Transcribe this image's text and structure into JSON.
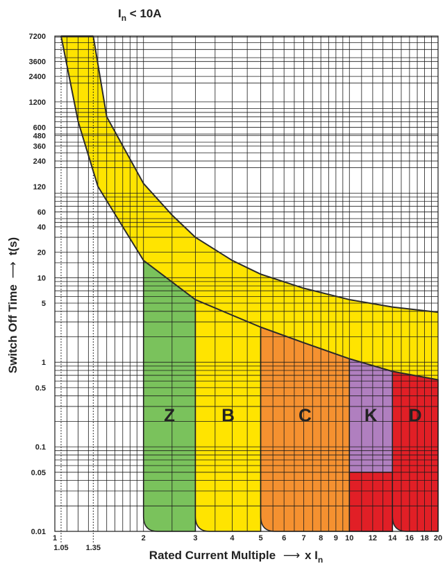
{
  "chart_data": {
    "type": "area",
    "title_main": "I",
    "title_sub": "n",
    "title_rest": " < 10A",
    "xlabel_main": "Rated Current Multiple",
    "xlabel_unit_main": "x I",
    "xlabel_unit_sub": "n",
    "ylabel_main": "Switch Off Time",
    "ylabel_unit": "t(s)",
    "x_scale": "log",
    "y_scale": "log",
    "xlim": [
      1,
      20
    ],
    "ylim": [
      0.01,
      7200
    ],
    "x_ticks": [
      {
        "value": 1,
        "label": "1"
      },
      {
        "value": 2,
        "label": "2"
      },
      {
        "value": 3,
        "label": "3"
      },
      {
        "value": 4,
        "label": "4"
      },
      {
        "value": 5,
        "label": "5"
      },
      {
        "value": 6,
        "label": "6"
      },
      {
        "value": 7,
        "label": "7"
      },
      {
        "value": 8,
        "label": "8"
      },
      {
        "value": 9,
        "label": "9"
      },
      {
        "value": 10,
        "label": "10"
      },
      {
        "value": 12,
        "label": "12"
      },
      {
        "value": 14,
        "label": "14"
      },
      {
        "value": 16,
        "label": "16"
      },
      {
        "value": 18,
        "label": "18"
      },
      {
        "value": 20,
        "label": "20"
      }
    ],
    "x_ticks_dotted": [
      {
        "value": 1.05,
        "label": "1.05"
      },
      {
        "value": 1.35,
        "label": "1.35"
      }
    ],
    "y_ticks": [
      {
        "value": 7200,
        "label": "7200"
      },
      {
        "value": 3600,
        "label": "3600"
      },
      {
        "value": 2400,
        "label": "2400"
      },
      {
        "value": 1200,
        "label": "1200"
      },
      {
        "value": 600,
        "label": "600"
      },
      {
        "value": 480,
        "label": "480"
      },
      {
        "value": 360,
        "label": "360"
      },
      {
        "value": 240,
        "label": "240"
      },
      {
        "value": 120,
        "label": "120"
      },
      {
        "value": 60,
        "label": "60"
      },
      {
        "value": 40,
        "label": "40"
      },
      {
        "value": 20,
        "label": "20"
      },
      {
        "value": 10,
        "label": "10"
      },
      {
        "value": 5,
        "label": "5"
      },
      {
        "value": 1,
        "label": "1"
      },
      {
        "value": 0.5,
        "label": "0.5"
      },
      {
        "value": 0.1,
        "label": "0.1"
      },
      {
        "value": 0.05,
        "label": "0.05"
      },
      {
        "value": 0.01,
        "label": "0.01"
      }
    ],
    "thermal_band": {
      "color": "#ffe400",
      "upper_curve": [
        [
          1.35,
          7200
        ],
        [
          1.5,
          800
        ],
        [
          2,
          130
        ],
        [
          2.5,
          55
        ],
        [
          3,
          30
        ],
        [
          4,
          16
        ],
        [
          5,
          11
        ],
        [
          7,
          7.5
        ],
        [
          10,
          5.5
        ],
        [
          14,
          4.5
        ],
        [
          20,
          3.9
        ]
      ],
      "lower_curve": [
        [
          1.05,
          7200
        ],
        [
          1.2,
          700
        ],
        [
          1.4,
          120
        ],
        [
          1.7,
          40
        ],
        [
          2,
          16
        ],
        [
          3,
          5.5
        ],
        [
          4,
          3.6
        ],
        [
          5,
          2.6
        ],
        [
          7,
          1.7
        ],
        [
          10,
          1.1
        ],
        [
          14,
          0.78
        ],
        [
          20,
          0.62
        ]
      ]
    },
    "zones": [
      {
        "name": "Z",
        "x_from": 2,
        "x_to": 3,
        "color": "#7ac25c"
      },
      {
        "name": "B",
        "x_from": 3,
        "x_to": 5,
        "color": "#ffe400"
      },
      {
        "name": "C",
        "x_from": 5,
        "x_to": 10,
        "color": "#f59130"
      },
      {
        "name": "K",
        "x_from": 10,
        "x_to": 14,
        "color": "#b07fbf",
        "lower_color": "#e11f26",
        "split_at": 0.05
      },
      {
        "name": "D",
        "x_from": 14,
        "x_to": 20,
        "color": "#e11f26"
      }
    ],
    "grid": true
  }
}
